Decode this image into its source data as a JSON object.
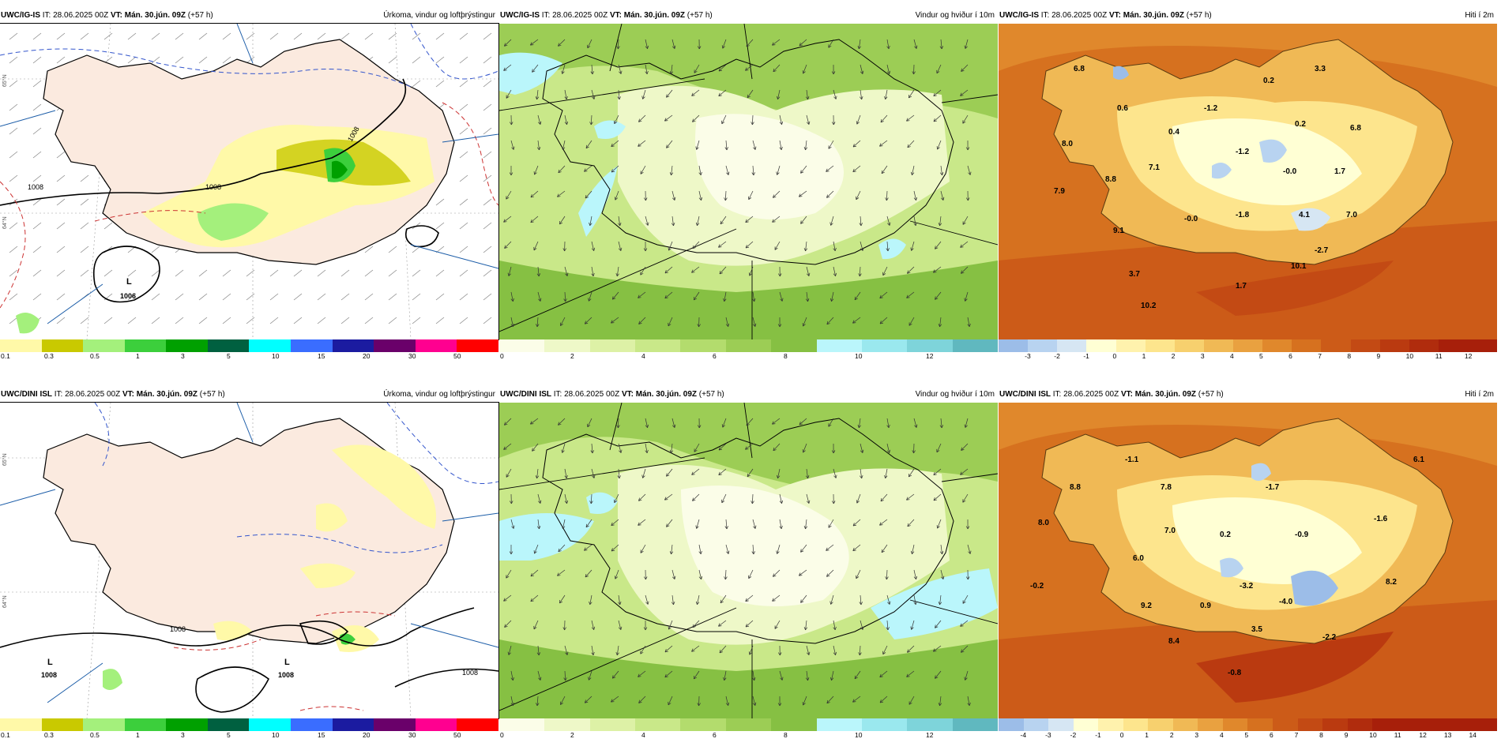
{
  "rows": [
    {
      "panels": [
        {
          "model": "UWC/IG-IS",
          "it": "IT: 28.06.2025 00Z",
          "vt_label": "VT: Mán. 30.jún. 09Z",
          "lead": "(+57 h)",
          "title": "Úrkoma, vindur og loftþrýstingur",
          "legend_ticks": [
            "0.1",
            "0.3",
            "0.5",
            "1",
            "3",
            "5",
            "10",
            "15",
            "20",
            "30",
            "50"
          ],
          "map_labels": [
            "L",
            "1006",
            "1008",
            "1008",
            "1008"
          ],
          "lat_labels": [
            "65°N",
            "64°N"
          ]
        },
        {
          "model": "UWC/IG-IS",
          "it": "IT: 28.06.2025 00Z",
          "vt_label": "VT: Mán. 30.jún. 09Z",
          "lead": "(+57 h)",
          "title": "Vindur og hviður í 10m",
          "legend_ticks": [
            "0",
            "2",
            "4",
            "6",
            "8",
            "10",
            "12"
          ]
        },
        {
          "model": "UWC/IG-IS",
          "it": "IT: 28.06.2025 00Z",
          "vt_label": "VT: Mán. 30.jún. 09Z",
          "lead": "(+57 h)",
          "title": "Hiti í 2m",
          "legend_ticks": [
            "-3",
            "-2",
            "-1",
            "0",
            "1",
            "2",
            "3",
            "4",
            "5",
            "6",
            "7",
            "8",
            "9",
            "10",
            "11",
            "12"
          ],
          "temps": [
            "6.8",
            "0.6",
            "-1.2",
            "0.2",
            "3.3",
            "0.2",
            "6.8",
            "8.0",
            "0.4",
            "7.1",
            "-1.2",
            "-0.0",
            "1.7",
            "8.8",
            "7.9",
            "-0.0",
            "-1.8",
            "4.1",
            "7.0",
            "9.1",
            "-2.7",
            "10.1",
            "3.7",
            "1.7",
            "10.2"
          ]
        }
      ]
    },
    {
      "panels": [
        {
          "model": "UWC/DINI ISL",
          "it": "IT: 28.06.2025 00Z",
          "vt_label": "VT: Mán. 30.jún. 09Z",
          "lead": "(+57 h)",
          "title": "Úrkoma, vindur og loftþrýstingur",
          "legend_ticks": [
            "0.1",
            "0.3",
            "0.5",
            "1",
            "3",
            "5",
            "10",
            "15",
            "20",
            "30",
            "50"
          ],
          "map_labels": [
            "L",
            "1008",
            "L",
            "1008",
            "1008",
            "1008"
          ],
          "lat_labels": [
            "65°N",
            "64°N"
          ]
        },
        {
          "model": "UWC/DINI ISL",
          "it": "IT: 28.06.2025 00Z",
          "vt_label": "VT: Mán. 30.jún. 09Z",
          "lead": "(+57 h)",
          "title": "Vindur og hviður í 10m",
          "legend_ticks": [
            "0",
            "2",
            "4",
            "6",
            "8",
            "10",
            "12"
          ]
        },
        {
          "model": "UWC/DINI ISL",
          "it": "IT: 28.06.2025 00Z",
          "vt_label": "VT: Mán. 30.jún. 09Z",
          "lead": "(+57 h)",
          "title": "Hiti í 2m",
          "legend_ticks": [
            "-4",
            "-3",
            "-2",
            "-1",
            "0",
            "1",
            "2",
            "3",
            "4",
            "5",
            "6",
            "7",
            "8",
            "9",
            "10",
            "11",
            "12",
            "13",
            "14"
          ],
          "temps": [
            "-1.1",
            "6.1",
            "8.8",
            "7.8",
            "-1.7",
            "8.0",
            "-1.6",
            "7.0",
            "0.2",
            "-0.9",
            "6.0",
            "-0.2",
            "-3.2",
            "8.2",
            "9.2",
            "0.9",
            "-4.0",
            "3.5",
            "8.4",
            "-2.2",
            "-0.8"
          ]
        }
      ]
    }
  ],
  "colors": {
    "precip_scale": [
      "#fff9a8",
      "#c9c900",
      "#a4f07c",
      "#3ccf3c",
      "#00a000",
      "#006040",
      "#00ffff",
      "#3a6dff",
      "#1b1ba0",
      "#6a006a",
      "#ff0090",
      "#ff0000"
    ],
    "wind_scale": [
      "#fbfde8",
      "#eef8c8",
      "#ddf1a6",
      "#c9e889",
      "#b3dc6d",
      "#9ccd55",
      "#86c043",
      "#baf6fb",
      "#9ae8ee",
      "#7ed4da",
      "#60b8bf"
    ],
    "temp_scale": [
      "#9cbde8",
      "#b8d3f0",
      "#d6e6f3",
      "#ffffd4",
      "#fff2ad",
      "#fde58d",
      "#f7d06e",
      "#f0b955",
      "#e9a140",
      "#e0882c",
      "#d6711f",
      "#cc5b18",
      "#c34a14",
      "#ba3a10",
      "#b02c0d",
      "#a71f0a"
    ],
    "land": "#fbeadf"
  }
}
